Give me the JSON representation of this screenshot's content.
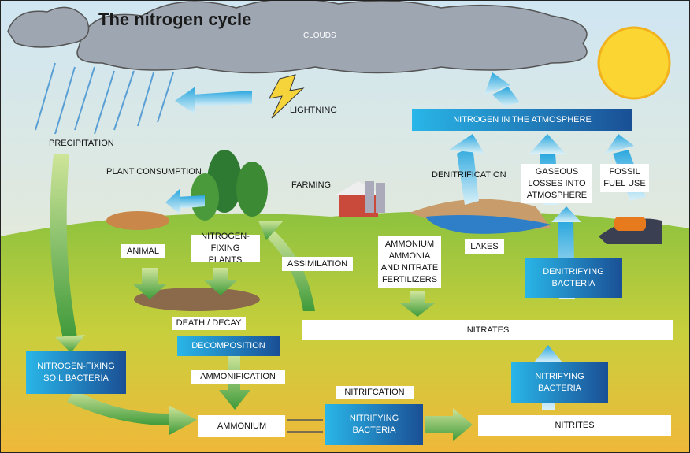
{
  "title": "The nitrogen cycle",
  "labels": {
    "clouds": "CLOUDS",
    "lightning": "LIGHTNING",
    "precipitation": "PRECIPITATION",
    "plant_consumption": "PLANT CONSUMPTION",
    "farming": "FARMING",
    "denitrification": "DENITRIFICATION",
    "gaseous_losses": [
      "GASEOUS",
      "LOSSES INTO",
      "ATMOSPHERE"
    ],
    "fossil_fuel_use": [
      "FOSSIL",
      "FUEL USE"
    ],
    "nitrogen_atmosphere": "NITROGEN IN THE ATMOSPHERE",
    "animal": "ANIMAL",
    "nitrogen_fixing_plants": [
      "NITROGEN-FIXING",
      "PLANTS"
    ],
    "assimilation": "ASSIMILATION",
    "fertilizers": [
      "AMMONIUM",
      "AMMONIA",
      "AND NITRATE",
      "FERTILIZERS"
    ],
    "lakes": "LAKES",
    "denitrifying_bacteria": [
      "DENITRIFYING",
      "BACTERIA"
    ],
    "death_decay": "DEATH / DECAY",
    "nitrates": "NITRATES",
    "decomposition": "DECOMPOSITION",
    "soil_bacteria": [
      "NITROGEN-FIXING",
      "SOIL BACTERIA"
    ],
    "ammonification": "AMMONIFICATION",
    "nitrification": "NITRIFCATION",
    "nitrifying_bacteria_right": [
      "NITRIFYING",
      "BACTERIA"
    ],
    "ammonium": "AMMONIUM",
    "nitrifying_bacteria_bottom": [
      "NITRIFYING",
      "BACTERIA"
    ],
    "nitrites": "NITRITES"
  }
}
